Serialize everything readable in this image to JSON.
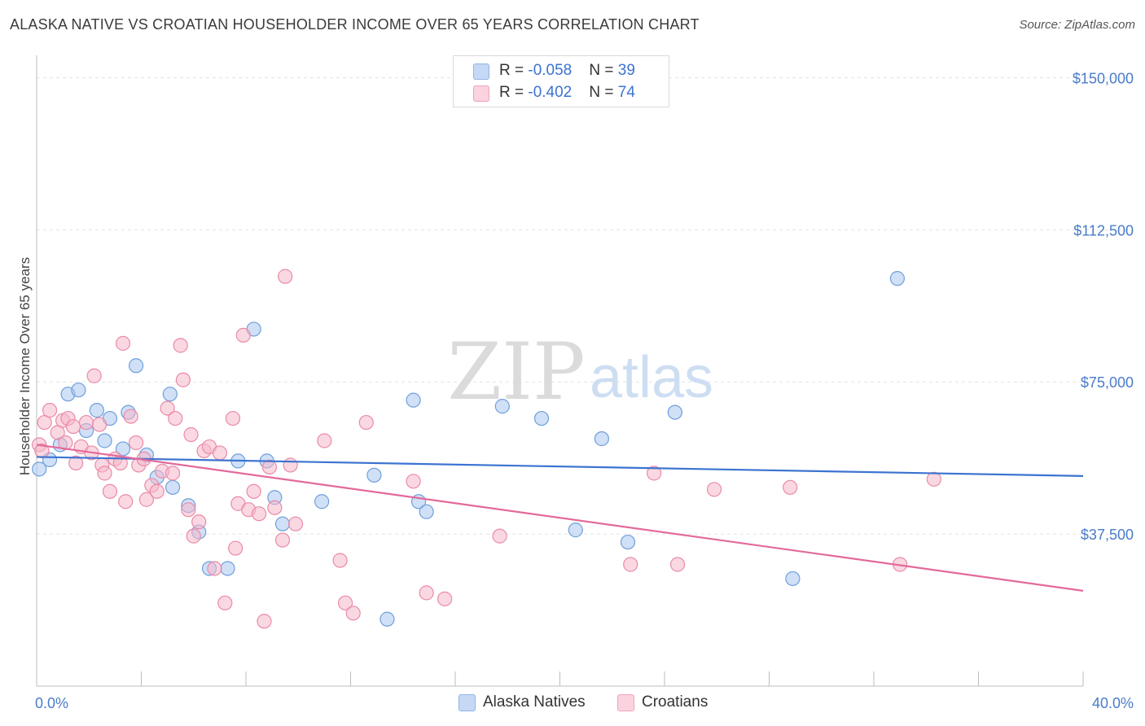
{
  "title": "ALASKA NATIVE VS CROATIAN HOUSEHOLDER INCOME OVER 65 YEARS CORRELATION CHART",
  "source": "Source: ZipAtlas.com",
  "watermark": {
    "zip": "ZIP",
    "atlas": "atlas"
  },
  "legend_top": [
    {
      "r_label": "R = ",
      "r_value": "-0.058",
      "n_label": "N = ",
      "n_value": "39",
      "color": "#a9c6ee"
    },
    {
      "r_label": "R = ",
      "r_value": "-0.402",
      "n_label": "N = ",
      "n_value": "74",
      "color": "#f6b8cb"
    }
  ],
  "legend_bottom": [
    {
      "label": "Alaska Natives",
      "color": "#a9c6ee"
    },
    {
      "label": "Croatians",
      "color": "#f6b8cb"
    }
  ],
  "chart_data": {
    "type": "scatter",
    "title": "ALASKA NATIVE VS CROATIAN HOUSEHOLDER INCOME OVER 65 YEARS CORRELATION CHART",
    "xlabel": "",
    "ylabel": "Householder Income Over 65 years",
    "xlim": [
      0,
      40
    ],
    "ylim": [
      0,
      153500
    ],
    "x_tick_labels": [
      "0.0%",
      "40.0%"
    ],
    "y_ticks": [
      37500,
      75000,
      112500,
      150000
    ],
    "y_tick_labels": [
      "$37,500",
      "$75,000",
      "$112,500",
      "$150,000"
    ],
    "grid": true,
    "legend_placement": "top-center",
    "series": [
      {
        "name": "Alaska Natives",
        "color": "#a9c6ee",
        "edge": "#6f9fdc",
        "trend": {
          "x": [
            0,
            40
          ],
          "y": [
            56500,
            51800
          ],
          "color": "#3b73d1"
        },
        "points": [
          [
            0.1,
            53500
          ],
          [
            0.5,
            55800
          ],
          [
            0.9,
            59500
          ],
          [
            1.2,
            72000
          ],
          [
            1.6,
            73000
          ],
          [
            2.3,
            68000
          ],
          [
            1.9,
            63000
          ],
          [
            2.6,
            60500
          ],
          [
            2.8,
            66000
          ],
          [
            3.3,
            58500
          ],
          [
            3.5,
            67500
          ],
          [
            3.8,
            79000
          ],
          [
            4.2,
            57000
          ],
          [
            4.6,
            51500
          ],
          [
            5.1,
            72000
          ],
          [
            5.2,
            49000
          ],
          [
            5.8,
            44500
          ],
          [
            6.2,
            38000
          ],
          [
            6.6,
            29000
          ],
          [
            7.3,
            29000
          ],
          [
            7.7,
            55500
          ],
          [
            8.3,
            88000
          ],
          [
            8.8,
            55500
          ],
          [
            9.1,
            46500
          ],
          [
            9.4,
            40000
          ],
          [
            10.9,
            45500
          ],
          [
            12.9,
            52000
          ],
          [
            13.4,
            16500
          ],
          [
            14.4,
            70500
          ],
          [
            14.6,
            45500
          ],
          [
            14.9,
            43000
          ],
          [
            17.8,
            69000
          ],
          [
            19.3,
            66000
          ],
          [
            20.6,
            38500
          ],
          [
            21.6,
            61000
          ],
          [
            22.6,
            35500
          ],
          [
            24.4,
            67500
          ],
          [
            28.9,
            26500
          ],
          [
            32.9,
            100500
          ]
        ]
      },
      {
        "name": "Croatians",
        "color": "#f6b8cb",
        "edge": "#ea8aa8",
        "trend": {
          "x": [
            0,
            40
          ],
          "y": [
            59500,
            23500
          ],
          "color": "#e3699a"
        },
        "points": [
          [
            0.1,
            59500
          ],
          [
            0.3,
            65000
          ],
          [
            0.5,
            68000
          ],
          [
            0.8,
            62500
          ],
          [
            1.0,
            65500
          ],
          [
            1.2,
            66000
          ],
          [
            1.4,
            64000
          ],
          [
            1.5,
            55000
          ],
          [
            1.7,
            59000
          ],
          [
            1.9,
            65000
          ],
          [
            2.1,
            57500
          ],
          [
            2.2,
            76500
          ],
          [
            2.4,
            64500
          ],
          [
            2.5,
            54500
          ],
          [
            2.6,
            52500
          ],
          [
            2.8,
            48000
          ],
          [
            3.0,
            56000
          ],
          [
            3.2,
            55000
          ],
          [
            3.3,
            84500
          ],
          [
            3.4,
            45500
          ],
          [
            3.6,
            66500
          ],
          [
            3.8,
            60000
          ],
          [
            3.9,
            54500
          ],
          [
            4.1,
            56000
          ],
          [
            4.2,
            46000
          ],
          [
            4.4,
            49500
          ],
          [
            4.6,
            48000
          ],
          [
            4.8,
            53000
          ],
          [
            5.0,
            68500
          ],
          [
            5.2,
            52500
          ],
          [
            5.3,
            66000
          ],
          [
            5.5,
            84000
          ],
          [
            5.6,
            75500
          ],
          [
            5.8,
            43500
          ],
          [
            5.9,
            62000
          ],
          [
            6.0,
            37000
          ],
          [
            6.2,
            40500
          ],
          [
            6.4,
            58000
          ],
          [
            6.6,
            59000
          ],
          [
            6.8,
            29000
          ],
          [
            7.0,
            57500
          ],
          [
            7.2,
            20500
          ],
          [
            7.5,
            66000
          ],
          [
            7.6,
            34000
          ],
          [
            7.7,
            45000
          ],
          [
            7.9,
            86500
          ],
          [
            8.1,
            43500
          ],
          [
            8.3,
            48000
          ],
          [
            8.5,
            42500
          ],
          [
            8.7,
            16000
          ],
          [
            8.9,
            54000
          ],
          [
            9.1,
            44000
          ],
          [
            9.4,
            36000
          ],
          [
            9.5,
            101000
          ],
          [
            9.7,
            54500
          ],
          [
            9.9,
            40000
          ],
          [
            11.0,
            60500
          ],
          [
            11.6,
            31000
          ],
          [
            11.8,
            20500
          ],
          [
            12.1,
            18000
          ],
          [
            12.6,
            65000
          ],
          [
            14.4,
            50500
          ],
          [
            14.9,
            23000
          ],
          [
            15.6,
            21500
          ],
          [
            17.7,
            37000
          ],
          [
            22.7,
            30000
          ],
          [
            23.6,
            52500
          ],
          [
            24.5,
            30000
          ],
          [
            25.9,
            48500
          ],
          [
            28.8,
            49000
          ],
          [
            33.0,
            30000
          ],
          [
            34.3,
            51000
          ],
          [
            0.2,
            58000
          ],
          [
            1.1,
            60000
          ]
        ]
      }
    ]
  }
}
